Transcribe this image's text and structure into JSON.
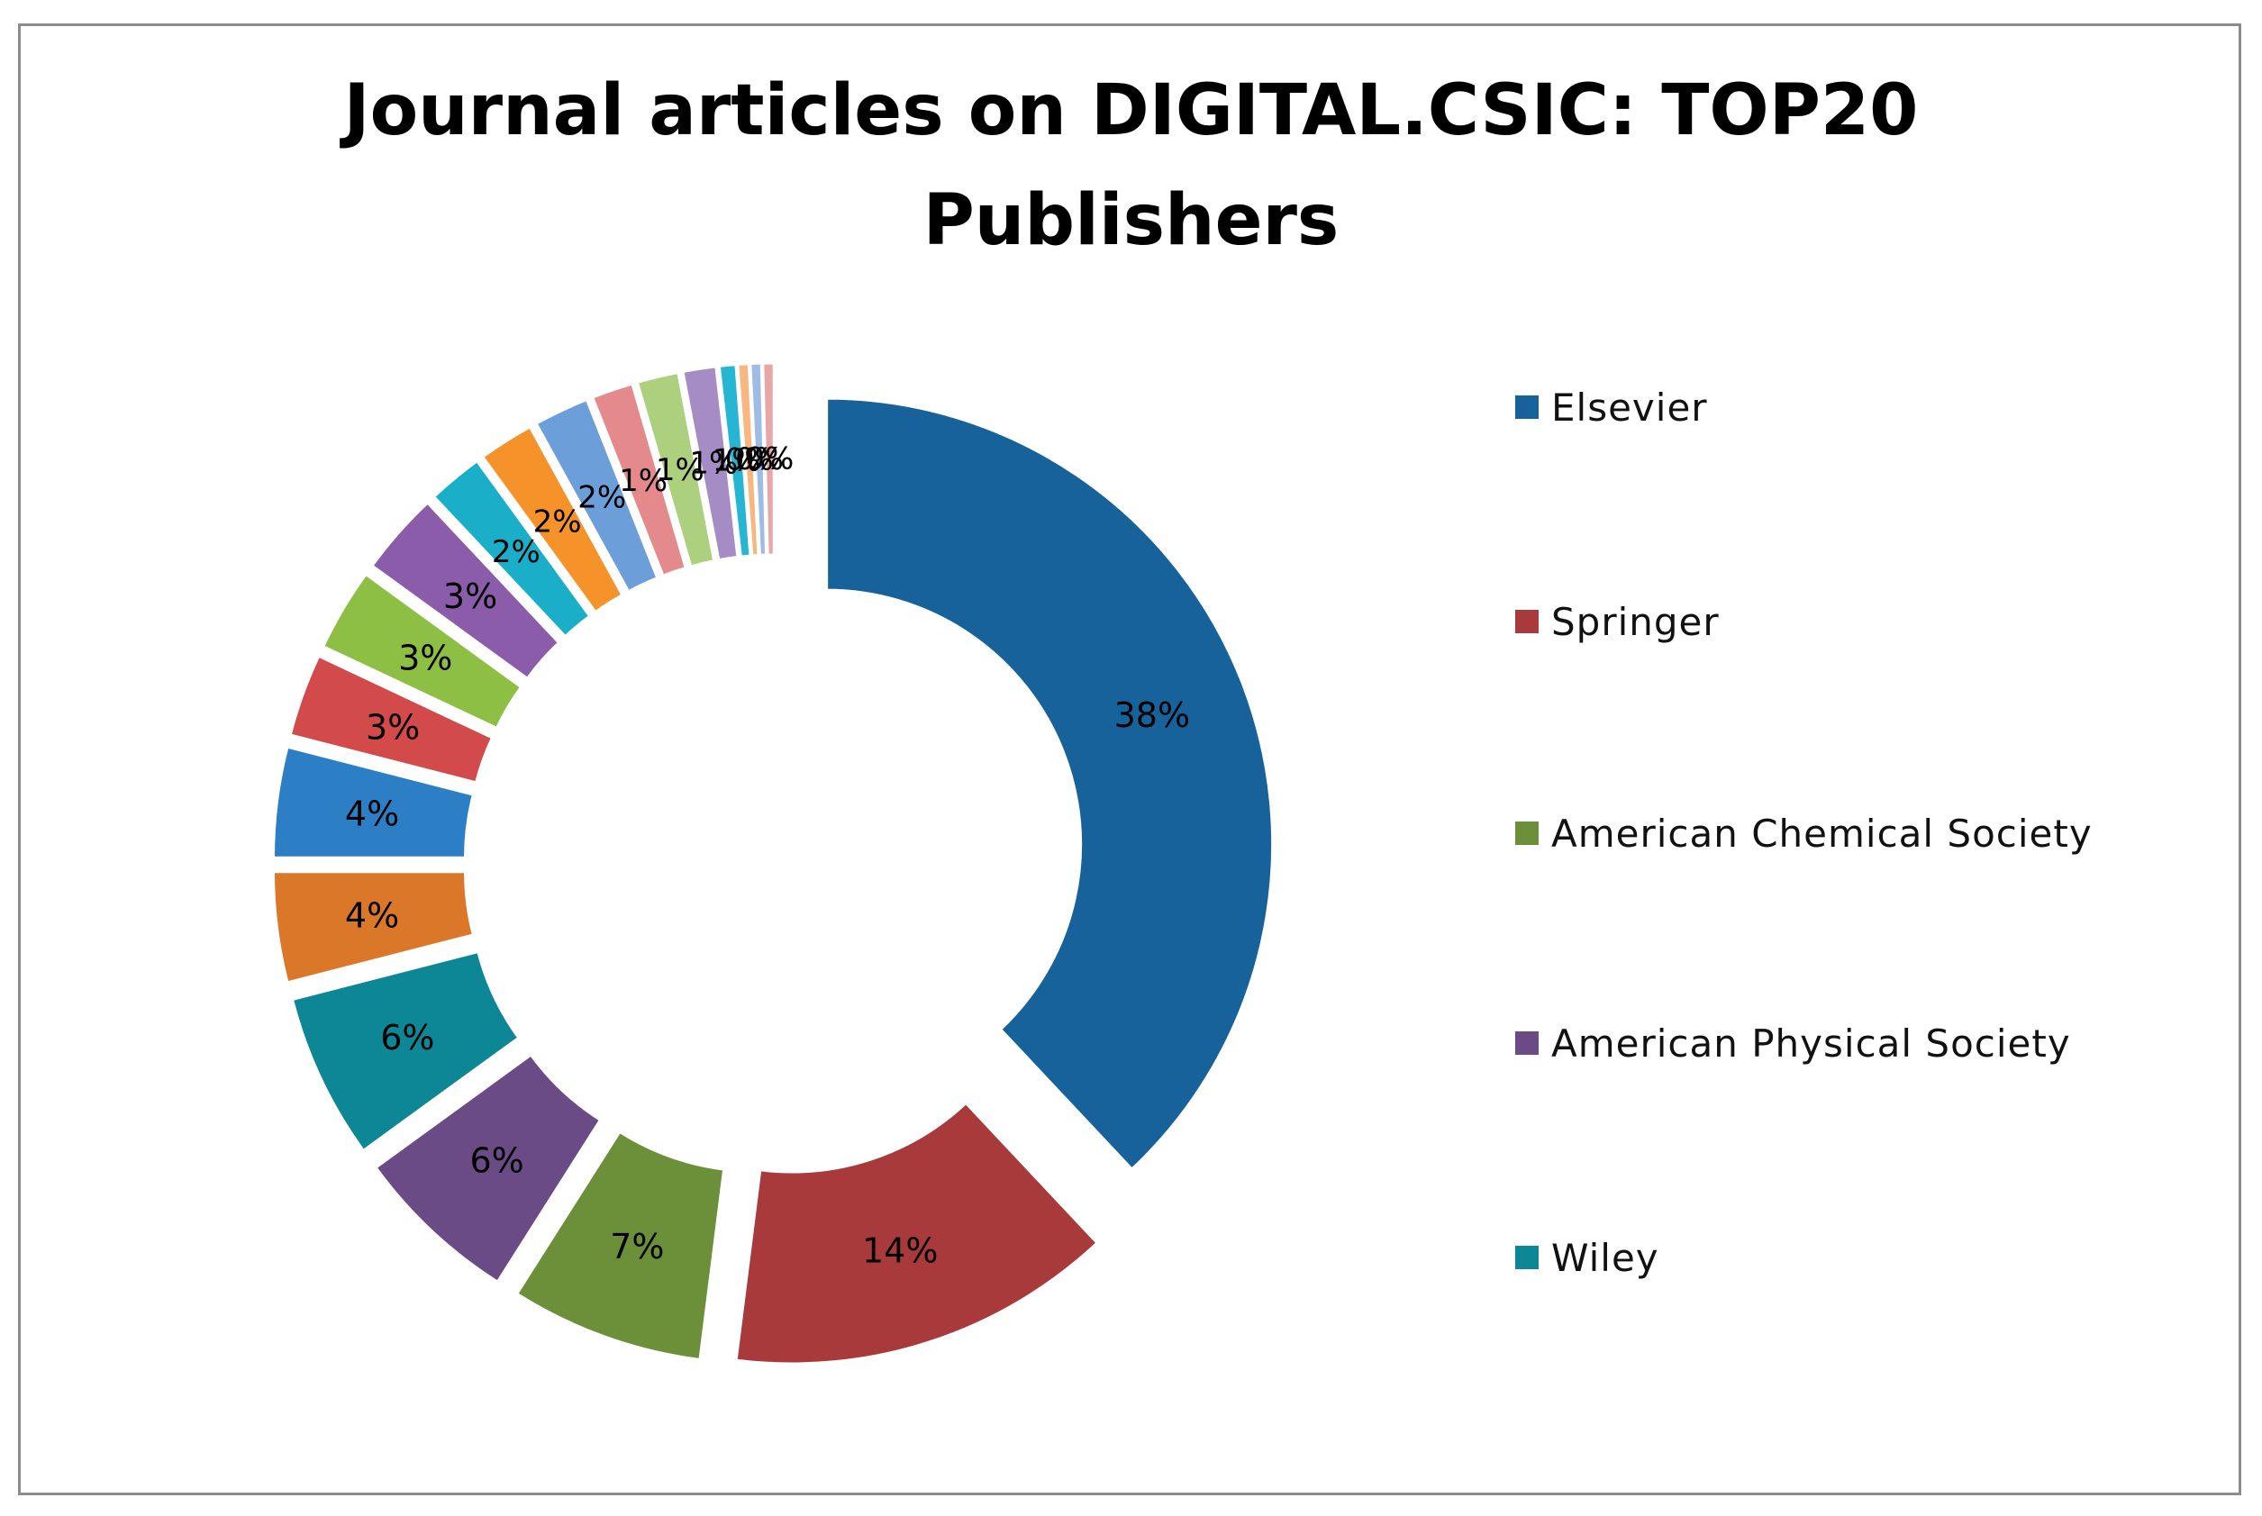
{
  "chart_data": {
    "type": "pie",
    "variant": "exploded-doughnut",
    "title": "Journal articles on DIGITAL.CSIC: TOP20 Publishers",
    "title_lines": [
      "Journal articles on DIGITAL.CSIC: TOP20",
      "Publishers"
    ],
    "legend_placement": "right",
    "slices": [
      {
        "name": "Elsevier",
        "value": 38,
        "label": "38%",
        "color": "#17629A"
      },
      {
        "name": "Springer",
        "value": 14,
        "label": "14%",
        "color": "#A93A3B"
      },
      {
        "name": "American Chemical Society",
        "value": 7,
        "label": "7%",
        "color": "#6C8F3A"
      },
      {
        "name": "American Physical Society",
        "value": 6,
        "label": "6%",
        "color": "#6B4B85"
      },
      {
        "name": "Wiley",
        "value": 6,
        "label": "6%",
        "color": "#0D8795"
      },
      {
        "name": "",
        "value": 4,
        "label": "4%",
        "color": "#DA7728"
      },
      {
        "name": "",
        "value": 4,
        "label": "4%",
        "color": "#2C7FC4"
      },
      {
        "name": "",
        "value": 3,
        "label": "3%",
        "color": "#D24A4A"
      },
      {
        "name": "",
        "value": 3,
        "label": "3%",
        "color": "#8DBF45"
      },
      {
        "name": "",
        "value": 3,
        "label": "3%",
        "color": "#8A5CA9"
      },
      {
        "name": "",
        "value": 2,
        "label": "2%",
        "color": "#1BAEC8"
      },
      {
        "name": "",
        "value": 2,
        "label": "2%",
        "color": "#F6922A"
      },
      {
        "name": "",
        "value": 2,
        "label": "2%",
        "color": "#6C9ED9"
      },
      {
        "name": "",
        "value": 1.5,
        "label": "1%",
        "color": "#E48A8C"
      },
      {
        "name": "",
        "value": 1.5,
        "label": "1%",
        "color": "#ACD07E"
      },
      {
        "name": "",
        "value": 1.2,
        "label": "1%",
        "color": "#A68CC5"
      },
      {
        "name": "",
        "value": 0.6,
        "label": "1%",
        "color": "#26B6D4"
      },
      {
        "name": "",
        "value": 0.4,
        "label": "0%",
        "color": "#F8B780"
      },
      {
        "name": "",
        "value": 0.4,
        "label": "0%",
        "color": "#9FBCE6"
      },
      {
        "name": "",
        "value": 0.4,
        "label": "0%",
        "color": "#E9A6A8"
      }
    ],
    "legend": [
      "Elsevier",
      "Springer",
      "American Chemical Society",
      "American Physical Society",
      "Wiley"
    ]
  }
}
